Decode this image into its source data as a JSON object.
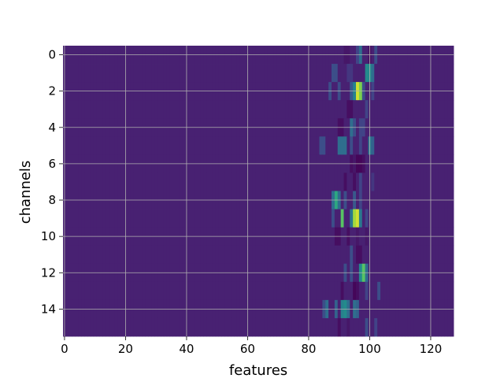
{
  "chart_data": {
    "type": "heatmap",
    "title": "",
    "xlabel": "features",
    "ylabel": "channels",
    "rows": 16,
    "cols": 128,
    "xlim": [
      -0.5,
      127.5
    ],
    "ylim": [
      15.5,
      -0.5
    ],
    "x_ticks": [
      0,
      20,
      40,
      60,
      80,
      100,
      120
    ],
    "y_ticks": [
      0,
      2,
      4,
      6,
      8,
      10,
      12,
      14
    ],
    "grid": true,
    "colormap": "viridis",
    "background_value": 0.12,
    "hot_cells": [
      {
        "row": 0,
        "col": 92,
        "value": 0.08
      },
      {
        "row": 0,
        "col": 93,
        "value": 0.08
      },
      {
        "row": 0,
        "col": 96,
        "value": 0.25
      },
      {
        "row": 0,
        "col": 97,
        "value": 0.45
      },
      {
        "row": 0,
        "col": 100,
        "value": 0.05
      },
      {
        "row": 0,
        "col": 102,
        "value": 0.3
      },
      {
        "row": 1,
        "col": 88,
        "value": 0.3
      },
      {
        "row": 1,
        "col": 89,
        "value": 0.3
      },
      {
        "row": 1,
        "col": 93,
        "value": 0.2
      },
      {
        "row": 1,
        "col": 94,
        "value": 0.2
      },
      {
        "row": 1,
        "col": 99,
        "value": 0.6
      },
      {
        "row": 1,
        "col": 100,
        "value": 0.6
      },
      {
        "row": 1,
        "col": 101,
        "value": 0.45
      },
      {
        "row": 2,
        "col": 87,
        "value": 0.3
      },
      {
        "row": 2,
        "col": 90,
        "value": 0.3
      },
      {
        "row": 2,
        "col": 94,
        "value": 0.35
      },
      {
        "row": 2,
        "col": 95,
        "value": 0.55
      },
      {
        "row": 2,
        "col": 96,
        "value": 0.95
      },
      {
        "row": 2,
        "col": 97,
        "value": 0.85
      },
      {
        "row": 2,
        "col": 98,
        "value": 0.3
      },
      {
        "row": 2,
        "col": 101,
        "value": 0.25
      },
      {
        "row": 3,
        "col": 93,
        "value": 0.05
      },
      {
        "row": 3,
        "col": 94,
        "value": 0.05
      },
      {
        "row": 3,
        "col": 99,
        "value": 0.25
      },
      {
        "row": 4,
        "col": 90,
        "value": 0.05
      },
      {
        "row": 4,
        "col": 91,
        "value": 0.05
      },
      {
        "row": 4,
        "col": 94,
        "value": 0.45
      },
      {
        "row": 4,
        "col": 95,
        "value": 0.3
      },
      {
        "row": 4,
        "col": 97,
        "value": 0.25
      },
      {
        "row": 4,
        "col": 98,
        "value": 0.25
      },
      {
        "row": 5,
        "col": 84,
        "value": 0.3
      },
      {
        "row": 5,
        "col": 85,
        "value": 0.3
      },
      {
        "row": 5,
        "col": 90,
        "value": 0.45
      },
      {
        "row": 5,
        "col": 91,
        "value": 0.45
      },
      {
        "row": 5,
        "col": 92,
        "value": 0.45
      },
      {
        "row": 5,
        "col": 94,
        "value": 0.3
      },
      {
        "row": 5,
        "col": 97,
        "value": 0.25
      },
      {
        "row": 5,
        "col": 100,
        "value": 0.5
      },
      {
        "row": 5,
        "col": 101,
        "value": 0.4
      },
      {
        "row": 6,
        "col": 94,
        "value": 0.05
      },
      {
        "row": 6,
        "col": 95,
        "value": 0.08
      },
      {
        "row": 6,
        "col": 96,
        "value": 0.02
      },
      {
        "row": 6,
        "col": 97,
        "value": 0.02
      },
      {
        "row": 6,
        "col": 98,
        "value": 0.05
      },
      {
        "row": 7,
        "col": 92,
        "value": 0.05
      },
      {
        "row": 7,
        "col": 95,
        "value": 0.05
      },
      {
        "row": 7,
        "col": 97,
        "value": 0.25
      },
      {
        "row": 7,
        "col": 101,
        "value": 0.2
      },
      {
        "row": 8,
        "col": 88,
        "value": 0.45
      },
      {
        "row": 8,
        "col": 89,
        "value": 0.7
      },
      {
        "row": 8,
        "col": 90,
        "value": 0.45
      },
      {
        "row": 8,
        "col": 92,
        "value": 0.3
      },
      {
        "row": 8,
        "col": 95,
        "value": 0.35
      },
      {
        "row": 8,
        "col": 97,
        "value": 0.25
      },
      {
        "row": 9,
        "col": 88,
        "value": 0.3
      },
      {
        "row": 9,
        "col": 91,
        "value": 0.8
      },
      {
        "row": 9,
        "col": 94,
        "value": 0.5
      },
      {
        "row": 9,
        "col": 95,
        "value": 0.9
      },
      {
        "row": 9,
        "col": 96,
        "value": 0.95
      },
      {
        "row": 9,
        "col": 97,
        "value": 0.5
      },
      {
        "row": 9,
        "col": 99,
        "value": 0.25
      },
      {
        "row": 10,
        "col": 89,
        "value": 0.05
      },
      {
        "row": 10,
        "col": 90,
        "value": 0.05
      },
      {
        "row": 10,
        "col": 93,
        "value": 0.05
      },
      {
        "row": 10,
        "col": 96,
        "value": 0.08
      },
      {
        "row": 10,
        "col": 99,
        "value": 0.08
      },
      {
        "row": 11,
        "col": 94,
        "value": 0.3
      },
      {
        "row": 11,
        "col": 96,
        "value": 0.05
      },
      {
        "row": 11,
        "col": 97,
        "value": 0.05
      },
      {
        "row": 12,
        "col": 92,
        "value": 0.3
      },
      {
        "row": 12,
        "col": 94,
        "value": 0.3
      },
      {
        "row": 12,
        "col": 97,
        "value": 0.6
      },
      {
        "row": 12,
        "col": 98,
        "value": 0.8
      },
      {
        "row": 12,
        "col": 99,
        "value": 0.45
      },
      {
        "row": 13,
        "col": 91,
        "value": 0.05
      },
      {
        "row": 13,
        "col": 95,
        "value": 0.02
      },
      {
        "row": 13,
        "col": 96,
        "value": 0.05
      },
      {
        "row": 13,
        "col": 99,
        "value": 0.25
      },
      {
        "row": 13,
        "col": 103,
        "value": 0.3
      },
      {
        "row": 14,
        "col": 85,
        "value": 0.3
      },
      {
        "row": 14,
        "col": 86,
        "value": 0.45
      },
      {
        "row": 14,
        "col": 89,
        "value": 0.4
      },
      {
        "row": 14,
        "col": 91,
        "value": 0.55
      },
      {
        "row": 14,
        "col": 92,
        "value": 0.6
      },
      {
        "row": 14,
        "col": 93,
        "value": 0.45
      },
      {
        "row": 14,
        "col": 95,
        "value": 0.45
      },
      {
        "row": 14,
        "col": 96,
        "value": 0.4
      },
      {
        "row": 15,
        "col": 90,
        "value": 0.05
      },
      {
        "row": 15,
        "col": 93,
        "value": 0.08
      },
      {
        "row": 15,
        "col": 99,
        "value": 0.3
      },
      {
        "row": 15,
        "col": 102,
        "value": 0.25
      }
    ]
  }
}
